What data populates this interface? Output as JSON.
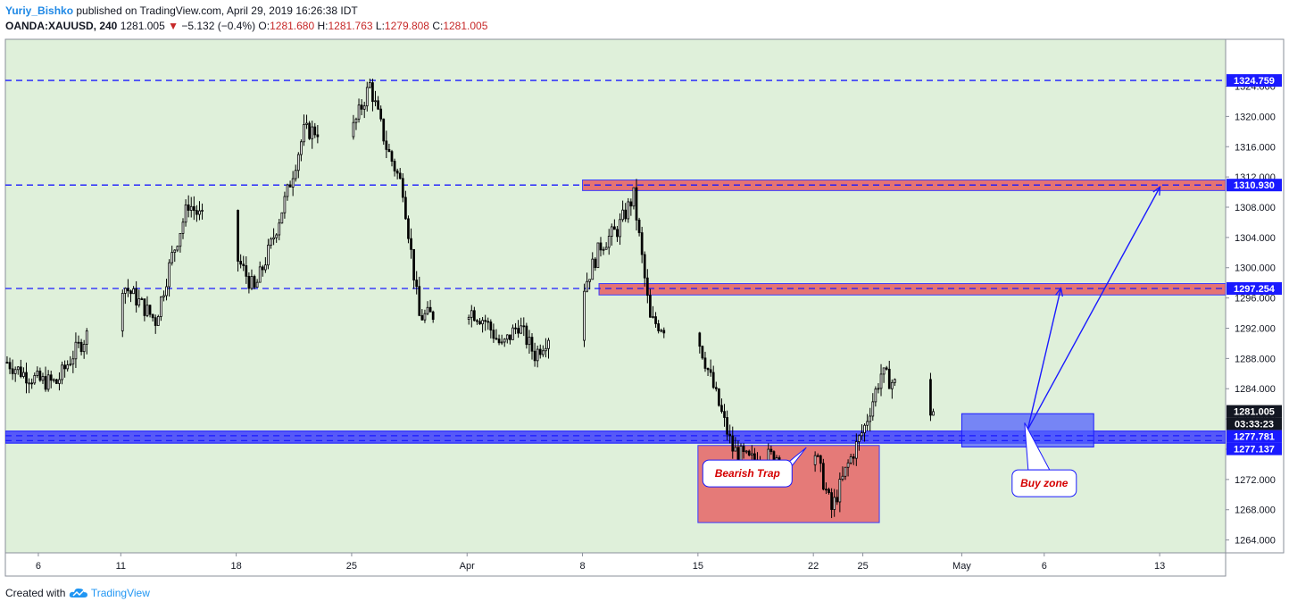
{
  "header": {
    "author": "Yuriy_Bishko",
    "published_text": "published on TradingView.com, April 29, 2019 16:26:38 IDT",
    "symbol": "OANDA:XAUUSD, 240",
    "last": "1281.005",
    "change": "−5.132 (−0.4%)",
    "open_label": "O:",
    "open": "1281.680",
    "high_label": "H:",
    "high": "1281.763",
    "low_label": "L:",
    "low": "1279.808",
    "close_label": "C:",
    "close": "1281.005"
  },
  "footer": {
    "created_with": "Created with",
    "brand": "TradingView",
    "logo_icon": "tradingview-cloud-icon"
  },
  "colors": {
    "background": "#dff0da",
    "level_line": "#1a1aff",
    "resistance_zone": "#e57373",
    "support_zone": "#3333ff",
    "candle": "#000000",
    "arrow": "#1a1aff",
    "text_red": "#d50000"
  },
  "chart_data": {
    "type": "candlestick",
    "symbol": "OANDA:XAUUSD",
    "timeframe": "240",
    "y_axis": {
      "ticks": [
        "1264.000",
        "1268.000",
        "1272.000",
        "1276.000",
        "1280.000",
        "1284.000",
        "1288.000",
        "1292.000",
        "1296.000",
        "1300.000",
        "1304.000",
        "1308.000",
        "1312.000",
        "1316.000",
        "1320.000",
        "1324.000"
      ],
      "ylim": [
        1262.3,
        1330.2
      ]
    },
    "x_axis": {
      "ticks": [
        "6",
        "11",
        "18",
        "25",
        "Apr",
        "8",
        "15",
        "22",
        "25",
        "May",
        "6",
        "13"
      ],
      "tick_dates": [
        "2019-03-06",
        "2019-03-11",
        "2019-03-18",
        "2019-03-25",
        "2019-04-01",
        "2019-04-08",
        "2019-04-15",
        "2019-04-22",
        "2019-04-25",
        "2019-05-01",
        "2019-05-06",
        "2019-05-13"
      ],
      "range": [
        "2019-03-04",
        "2019-05-17"
      ]
    },
    "price_labels": [
      {
        "text": "1324.759",
        "value": 1324.759
      },
      {
        "text": "1310.930",
        "value": 1310.93
      },
      {
        "text": "1297.254",
        "value": 1297.254
      },
      {
        "text": "1281.005",
        "value": 1281.005,
        "style": "last"
      },
      {
        "text": "03:33:23",
        "value": 1279.4,
        "style": "countdown"
      },
      {
        "text": "1277.781",
        "value": 1277.781
      },
      {
        "text": "1277.137",
        "value": 1277.137
      }
    ],
    "levels": [
      {
        "value": 1324.759,
        "style": "dashed",
        "from": "2019-03-04"
      },
      {
        "value": 1310.93,
        "style": "dashed",
        "from": "2019-03-04"
      },
      {
        "value": 1297.254,
        "style": "dashed",
        "from": "2019-03-04"
      },
      {
        "value": 1277.781,
        "style": "dashed",
        "from": "2019-03-04"
      },
      {
        "value": 1277.137,
        "style": "dashed",
        "from": "2019-03-04"
      }
    ],
    "zones": [
      {
        "kind": "resistance",
        "from": "2019-04-08",
        "to": "2019-05-17",
        "y1": 1310.2,
        "y2": 1311.6
      },
      {
        "kind": "resistance",
        "from": "2019-04-09",
        "to": "2019-05-17",
        "y1": 1296.4,
        "y2": 1297.9
      },
      {
        "kind": "support",
        "from": "2019-03-04",
        "to": "2019-05-17",
        "y1": 1276.8,
        "y2": 1278.4
      },
      {
        "kind": "bearish-trap",
        "from": "2019-04-15",
        "to": "2019-04-26",
        "y1": 1266.3,
        "y2": 1276.5
      },
      {
        "kind": "buy-zone",
        "from": "2019-05-01",
        "to": "2019-05-09",
        "y1": 1276.3,
        "y2": 1280.7
      }
    ],
    "arrows": [
      {
        "from": {
          "date": "2019-05-05",
          "value": 1278.6
        },
        "to": {
          "date": "2019-05-07",
          "value": 1297.2
        }
      },
      {
        "from": {
          "date": "2019-05-05",
          "value": 1278.6
        },
        "to": {
          "date": "2019-05-13",
          "value": 1310.6
        }
      }
    ],
    "annotations": [
      {
        "text": "Bearish Trap",
        "date": "2019-04-18",
        "value": 1272.8
      },
      {
        "text": "Buy zone",
        "date": "2019-05-06",
        "value": 1271.5
      }
    ],
    "price_path": [
      [
        "2019-03-04",
        1287.5
      ],
      [
        "2019-03-05",
        1286.0
      ],
      [
        "2019-03-06",
        1285.0
      ],
      [
        "2019-03-07",
        1284.8
      ],
      [
        "2019-03-08",
        1288.5
      ],
      [
        "2019-03-11",
        1297.8
      ],
      [
        "2019-03-12",
        1295.5
      ],
      [
        "2019-03-13",
        1293.0
      ],
      [
        "2019-03-14",
        1301.5
      ],
      [
        "2019-03-15",
        1308.5
      ],
      [
        "2019-03-18",
        1301.0
      ],
      [
        "2019-03-19",
        1297.0
      ],
      [
        "2019-03-20",
        1303.0
      ],
      [
        "2019-03-21",
        1310.0
      ],
      [
        "2019-03-22",
        1318.0
      ],
      [
        "2019-03-25",
        1318.5
      ],
      [
        "2019-03-26",
        1324.2
      ],
      [
        "2019-03-27",
        1316.0
      ],
      [
        "2019-03-28",
        1310.5
      ],
      [
        "2019-03-29",
        1293.5
      ],
      [
        "2019-04-01",
        1294.5
      ],
      [
        "2019-04-02",
        1293.0
      ],
      [
        "2019-04-03",
        1289.5
      ],
      [
        "2019-04-04",
        1292.5
      ],
      [
        "2019-04-05",
        1288.5
      ],
      [
        "2019-04-08",
        1297.5
      ],
      [
        "2019-04-09",
        1303.0
      ],
      [
        "2019-04-10",
        1305.0
      ],
      [
        "2019-04-11",
        1309.5
      ],
      [
        "2019-04-12",
        1293.0
      ],
      [
        "2019-04-15",
        1290.0
      ],
      [
        "2019-04-16",
        1283.0
      ],
      [
        "2019-04-17",
        1276.0
      ],
      [
        "2019-04-18",
        1274.5
      ],
      [
        "2019-04-19",
        1275.0
      ],
      [
        "2019-04-22",
        1275.5
      ],
      [
        "2019-04-23",
        1268.0
      ],
      [
        "2019-04-24",
        1274.0
      ],
      [
        "2019-04-25",
        1279.0
      ],
      [
        "2019-04-26",
        1286.0
      ],
      [
        "2019-04-29",
        1281.0
      ]
    ]
  }
}
